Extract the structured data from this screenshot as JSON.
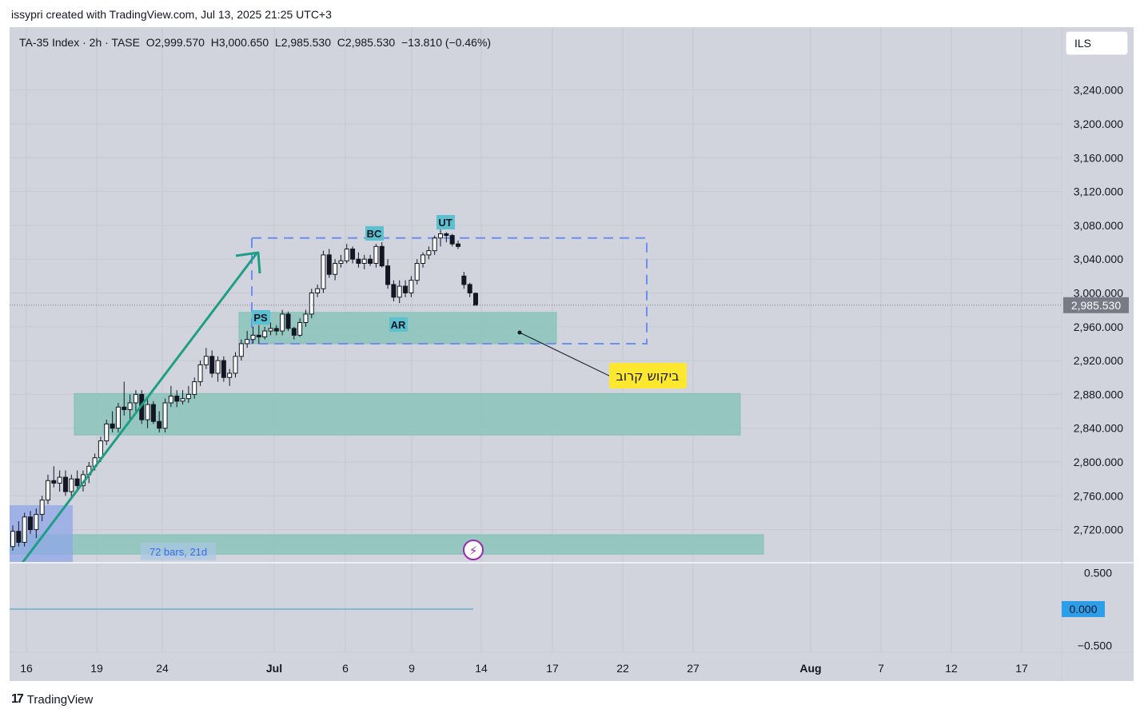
{
  "caption": "issypri created with TradingView.com, Jul 13, 2025 21:25 UTC+3",
  "header": {
    "symbol": "TA-35 Index · 2h · TASE",
    "open_label": "O",
    "open": "2,999.570",
    "high_label": "H",
    "high": "3,000.650",
    "low_label": "L",
    "low": "2,985.530",
    "close_label": "C",
    "close": "2,985.530",
    "change": "−13.810 (−0.46%)"
  },
  "currency": "ILS",
  "footer_brand": "TradingView",
  "chart_data": {
    "type": "candlestick",
    "price_axis": {
      "ticks": [
        "3,240.000",
        "3,200.000",
        "3,160.000",
        "3,120.000",
        "3,080.000",
        "3,040.000",
        "3,000.000",
        "2,960.000",
        "2,920.000",
        "2,880.000",
        "2,840.000",
        "2,800.000",
        "2,760.000",
        "2,720.000"
      ],
      "tick_values": [
        3240,
        3200,
        3160,
        3120,
        3080,
        3040,
        3000,
        2960,
        2920,
        2880,
        2840,
        2800,
        2760,
        2720
      ],
      "last_price_label": "2,985.530",
      "last_price": 2985.53
    },
    "time_axis": {
      "ticks": [
        "16",
        "19",
        "24",
        "Jul",
        "6",
        "9",
        "14",
        "17",
        "22",
        "27",
        "Aug",
        "7",
        "12",
        "17"
      ],
      "bold_ticks": [
        "Jul",
        "Aug"
      ]
    },
    "indicator_pane": {
      "ticks": [
        "0.500",
        "0.000",
        "−0.500"
      ],
      "tick_values": [
        0.5,
        0.0,
        -0.5
      ],
      "current_label": "0.000",
      "current_value": 0.0,
      "line_color": "#6aaed6"
    },
    "candles": [
      [
        2700,
        2725,
        2695,
        2718
      ],
      [
        2718,
        2730,
        2700,
        2705
      ],
      [
        2705,
        2740,
        2700,
        2735
      ],
      [
        2735,
        2742,
        2715,
        2720
      ],
      [
        2720,
        2745,
        2710,
        2738
      ],
      [
        2738,
        2760,
        2730,
        2755
      ],
      [
        2755,
        2785,
        2750,
        2778
      ],
      [
        2778,
        2795,
        2770,
        2775
      ],
      [
        2775,
        2790,
        2765,
        2782
      ],
      [
        2782,
        2790,
        2760,
        2765
      ],
      [
        2765,
        2785,
        2758,
        2780
      ],
      [
        2780,
        2790,
        2768,
        2772
      ],
      [
        2772,
        2790,
        2765,
        2785
      ],
      [
        2785,
        2800,
        2775,
        2795
      ],
      [
        2795,
        2810,
        2790,
        2805
      ],
      [
        2805,
        2830,
        2800,
        2825
      ],
      [
        2825,
        2850,
        2820,
        2845
      ],
      [
        2845,
        2860,
        2835,
        2840
      ],
      [
        2840,
        2870,
        2835,
        2865
      ],
      [
        2865,
        2895,
        2855,
        2862
      ],
      [
        2862,
        2880,
        2850,
        2870
      ],
      [
        2870,
        2885,
        2860,
        2880
      ],
      [
        2880,
        2885,
        2845,
        2850
      ],
      [
        2850,
        2875,
        2840,
        2868
      ],
      [
        2868,
        2872,
        2845,
        2848
      ],
      [
        2848,
        2860,
        2835,
        2840
      ],
      [
        2840,
        2875,
        2835,
        2870
      ],
      [
        2870,
        2890,
        2865,
        2878
      ],
      [
        2878,
        2885,
        2865,
        2872
      ],
      [
        2872,
        2885,
        2868,
        2875
      ],
      [
        2875,
        2890,
        2870,
        2880
      ],
      [
        2880,
        2900,
        2875,
        2895
      ],
      [
        2895,
        2920,
        2890,
        2915
      ],
      [
        2915,
        2935,
        2910,
        2925
      ],
      [
        2925,
        2932,
        2900,
        2905
      ],
      [
        2905,
        2925,
        2895,
        2920
      ],
      [
        2920,
        2925,
        2895,
        2900
      ],
      [
        2900,
        2910,
        2890,
        2905
      ],
      [
        2905,
        2930,
        2900,
        2925
      ],
      [
        2925,
        2945,
        2920,
        2940
      ],
      [
        2940,
        2955,
        2935,
        2945
      ],
      [
        2945,
        2960,
        2940,
        2950
      ],
      [
        2950,
        2962,
        2940,
        2948
      ],
      [
        2948,
        2960,
        2945,
        2955
      ],
      [
        2955,
        2965,
        2950,
        2958
      ],
      [
        2958,
        2962,
        2950,
        2955
      ],
      [
        2955,
        2980,
        2950,
        2975
      ],
      [
        2975,
        2978,
        2955,
        2958
      ],
      [
        2958,
        2960,
        2945,
        2950
      ],
      [
        2950,
        2970,
        2948,
        2965
      ],
      [
        2965,
        2980,
        2960,
        2975
      ],
      [
        2975,
        3005,
        2970,
        3000
      ],
      [
        3000,
        3010,
        2995,
        3005
      ],
      [
        3005,
        3050,
        3000,
        3045
      ],
      [
        3045,
        3052,
        3018,
        3022
      ],
      [
        3022,
        3040,
        3015,
        3035
      ],
      [
        3035,
        3045,
        3030,
        3038
      ],
      [
        3038,
        3058,
        3035,
        3052
      ],
      [
        3052,
        3055,
        3035,
        3040
      ],
      [
        3040,
        3048,
        3030,
        3035
      ],
      [
        3035,
        3045,
        3028,
        3040
      ],
      [
        3040,
        3045,
        3032,
        3035
      ],
      [
        3035,
        3058,
        3030,
        3055
      ],
      [
        3055,
        3060,
        3030,
        3032
      ],
      [
        3032,
        3040,
        3005,
        3010
      ],
      [
        3010,
        3015,
        2990,
        2995
      ],
      [
        2995,
        3015,
        2988,
        3008
      ],
      [
        3008,
        3015,
        2995,
        3000
      ],
      [
        3000,
        3020,
        2995,
        3015
      ],
      [
        3015,
        3040,
        3010,
        3035
      ],
      [
        3035,
        3048,
        3030,
        3045
      ],
      [
        3045,
        3055,
        3040,
        3050
      ],
      [
        3050,
        3068,
        3045,
        3065
      ],
      [
        3065,
        3075,
        3055,
        3070
      ],
      [
        3070,
        3072,
        3060,
        3068
      ],
      [
        3068,
        3070,
        3055,
        3058
      ],
      [
        3058,
        3062,
        3052,
        3055
      ],
      [
        3020,
        3025,
        3005,
        3010
      ],
      [
        3010,
        3012,
        2995,
        3000
      ],
      [
        2999.57,
        3000.65,
        2985.53,
        2985.53
      ]
    ],
    "zones": [
      {
        "name": "demand-zone-upper",
        "y_top": 2977,
        "y_bottom": 2940
      },
      {
        "name": "demand-zone-middle",
        "y_top": 2881,
        "y_bottom": 2832
      },
      {
        "name": "demand-zone-lower",
        "y_top": 2714,
        "y_bottom": 2691
      }
    ],
    "range_box": {
      "y_top": 3065,
      "y_bottom": 2940
    },
    "labels": [
      "PS",
      "BC",
      "AR",
      "UT"
    ],
    "callout_text": "ביקוש קרוב",
    "measure_label": "72 bars, 21d",
    "colors": {
      "background": "#d1d4dc",
      "bull_candle": "#ffffff",
      "bear_candle": "#131722",
      "zone_fill": "#8fc6bd",
      "zone_stroke": "#7dbdb2",
      "trend_arrow": "#1e9e85",
      "range_box": "#6b8ff0",
      "wyckoff_label": "#5bc0d0",
      "callout": "#fde72f",
      "measure_fill": "#8fa7e8",
      "measure_text": "#3a6ae8",
      "price_label_bg": "#787b86",
      "indicator_label_bg": "#2e9ee8",
      "lightning_icon": "#9c27b0"
    }
  }
}
